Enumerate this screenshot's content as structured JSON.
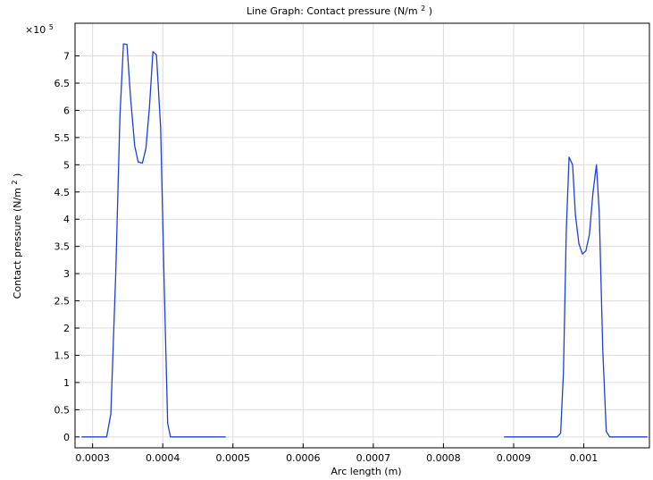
{
  "chart_data": {
    "type": "line",
    "title": "Line Graph: Contact pressure (N/m²)",
    "title_parts": {
      "prefix": "Line Graph: Contact pressure (N/m",
      "superscript": "2",
      "suffix": ")"
    },
    "xlabel": "Arc length (m)",
    "ylabel_parts": {
      "prefix": "Contact pressure (N/m",
      "superscript": "2",
      "suffix": ")"
    },
    "y_multiplier": {
      "base": "×10",
      "exponent": "5"
    },
    "xlim": [
      0.000275,
      0.0010935
    ],
    "ylim": [
      -0.2,
      7.6
    ],
    "grid": true,
    "legend": "none",
    "colors": {
      "series": "#1f3fd7",
      "axis": "#000000",
      "grid": "#dcdcdc",
      "background": "#ffffff"
    },
    "x_ticks": [
      0.0003,
      0.0004,
      0.0005,
      0.0006,
      0.0007,
      0.0008,
      0.0009,
      0.001
    ],
    "x_tick_labels": [
      "0.0003",
      "0.0004",
      "0.0005",
      "0.0006",
      "0.0007",
      "0.0008",
      "0.0009",
      "0.001"
    ],
    "y_ticks": [
      0,
      0.5,
      1,
      1.5,
      2,
      2.5,
      3,
      3.5,
      4,
      4.5,
      5,
      5.5,
      6,
      6.5,
      7
    ],
    "y_tick_labels": [
      "0",
      "0.5",
      "1",
      "1.5",
      "2",
      "2.5",
      "3",
      "3.5",
      "4",
      "4.5",
      "5",
      "5.5",
      "6",
      "6.5",
      "7"
    ],
    "series": [
      {
        "values": [
          [
            0.000285,
            0
          ],
          [
            0.00032,
            0
          ],
          [
            0.000326,
            0.42
          ],
          [
            0.000333,
            3.0
          ],
          [
            0.000339,
            5.9
          ],
          [
            0.000344,
            7.22
          ],
          [
            0.000349,
            7.21
          ],
          [
            0.000354,
            6.25
          ],
          [
            0.00036,
            5.35
          ],
          [
            0.000365,
            5.05
          ],
          [
            0.000371,
            5.03
          ],
          [
            0.000376,
            5.3
          ],
          [
            0.000381,
            6.05
          ],
          [
            0.000386,
            7.08
          ],
          [
            0.000391,
            7.02
          ],
          [
            0.000397,
            5.68
          ],
          [
            0.000402,
            2.82
          ],
          [
            0.000407,
            0.25
          ],
          [
            0.000411,
            0
          ],
          [
            0.000489,
            0
          ]
        ]
      },
      {
        "values": [
          [
            0.000887,
            0
          ],
          [
            0.000962,
            0
          ],
          [
            0.000967,
            0.07
          ],
          [
            0.000971,
            1.2
          ],
          [
            0.000975,
            3.78
          ],
          [
            0.000979,
            5.14
          ],
          [
            0.000984,
            5.0
          ],
          [
            0.000988,
            4.08
          ],
          [
            0.000993,
            3.55
          ],
          [
            0.000998,
            3.36
          ],
          [
            0.001003,
            3.42
          ],
          [
            0.001008,
            3.72
          ],
          [
            0.001013,
            4.48
          ],
          [
            0.001018,
            5.0
          ],
          [
            0.001022,
            4.12
          ],
          [
            0.001027,
            1.6
          ],
          [
            0.001032,
            0.1
          ],
          [
            0.001037,
            0
          ],
          [
            0.00109,
            0
          ]
        ]
      }
    ]
  }
}
